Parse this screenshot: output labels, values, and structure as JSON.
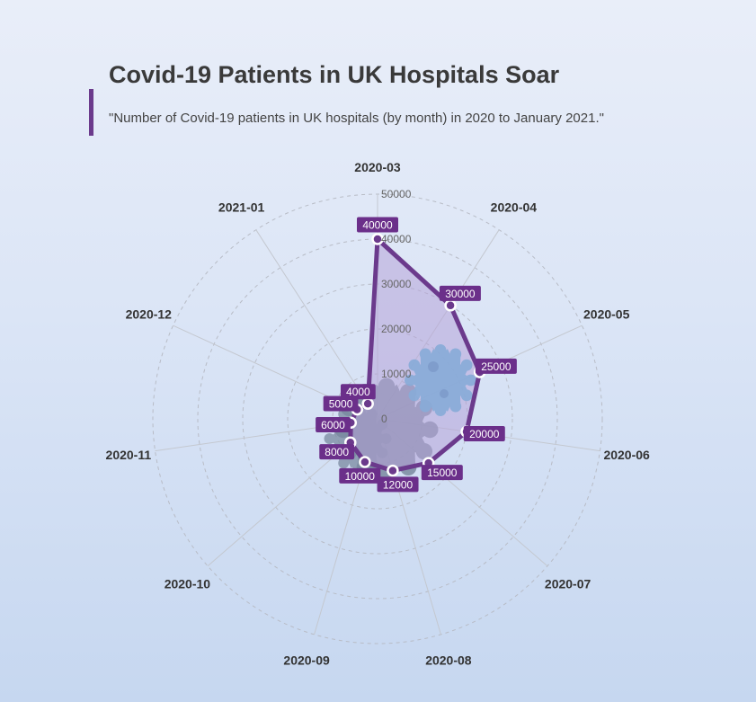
{
  "title": "Covid-19 Patients in UK Hospitals Soar",
  "subtitle": "\"Number of Covid-19 patients in UK hospitals (by month) in 2020 to January 2021.\"",
  "colors": {
    "series": "#6b3a8c",
    "fill": "#b6a4d8",
    "label_bg": "#6b2f8a",
    "virus": "#4fb4d8",
    "virus_grey": "#7a8aa0"
  },
  "chart_data": {
    "type": "radar",
    "categories": [
      "2020-03",
      "2020-04",
      "2020-05",
      "2020-06",
      "2020-07",
      "2020-08",
      "2020-09",
      "2020-10",
      "2020-11",
      "2020-12",
      "2021-01"
    ],
    "values": [
      40000,
      30000,
      25000,
      20000,
      15000,
      12000,
      10000,
      8000,
      6000,
      5000,
      4000
    ],
    "data_labels": [
      "40000",
      "30000",
      "25000",
      "20000",
      "15000",
      "12000",
      "10000",
      "8000",
      "6000",
      "5000",
      "4000"
    ],
    "radial_ticks": [
      "0",
      "10000",
      "20000",
      "30000",
      "40000",
      "50000"
    ],
    "rlim": [
      0,
      50000
    ],
    "grid": true
  }
}
